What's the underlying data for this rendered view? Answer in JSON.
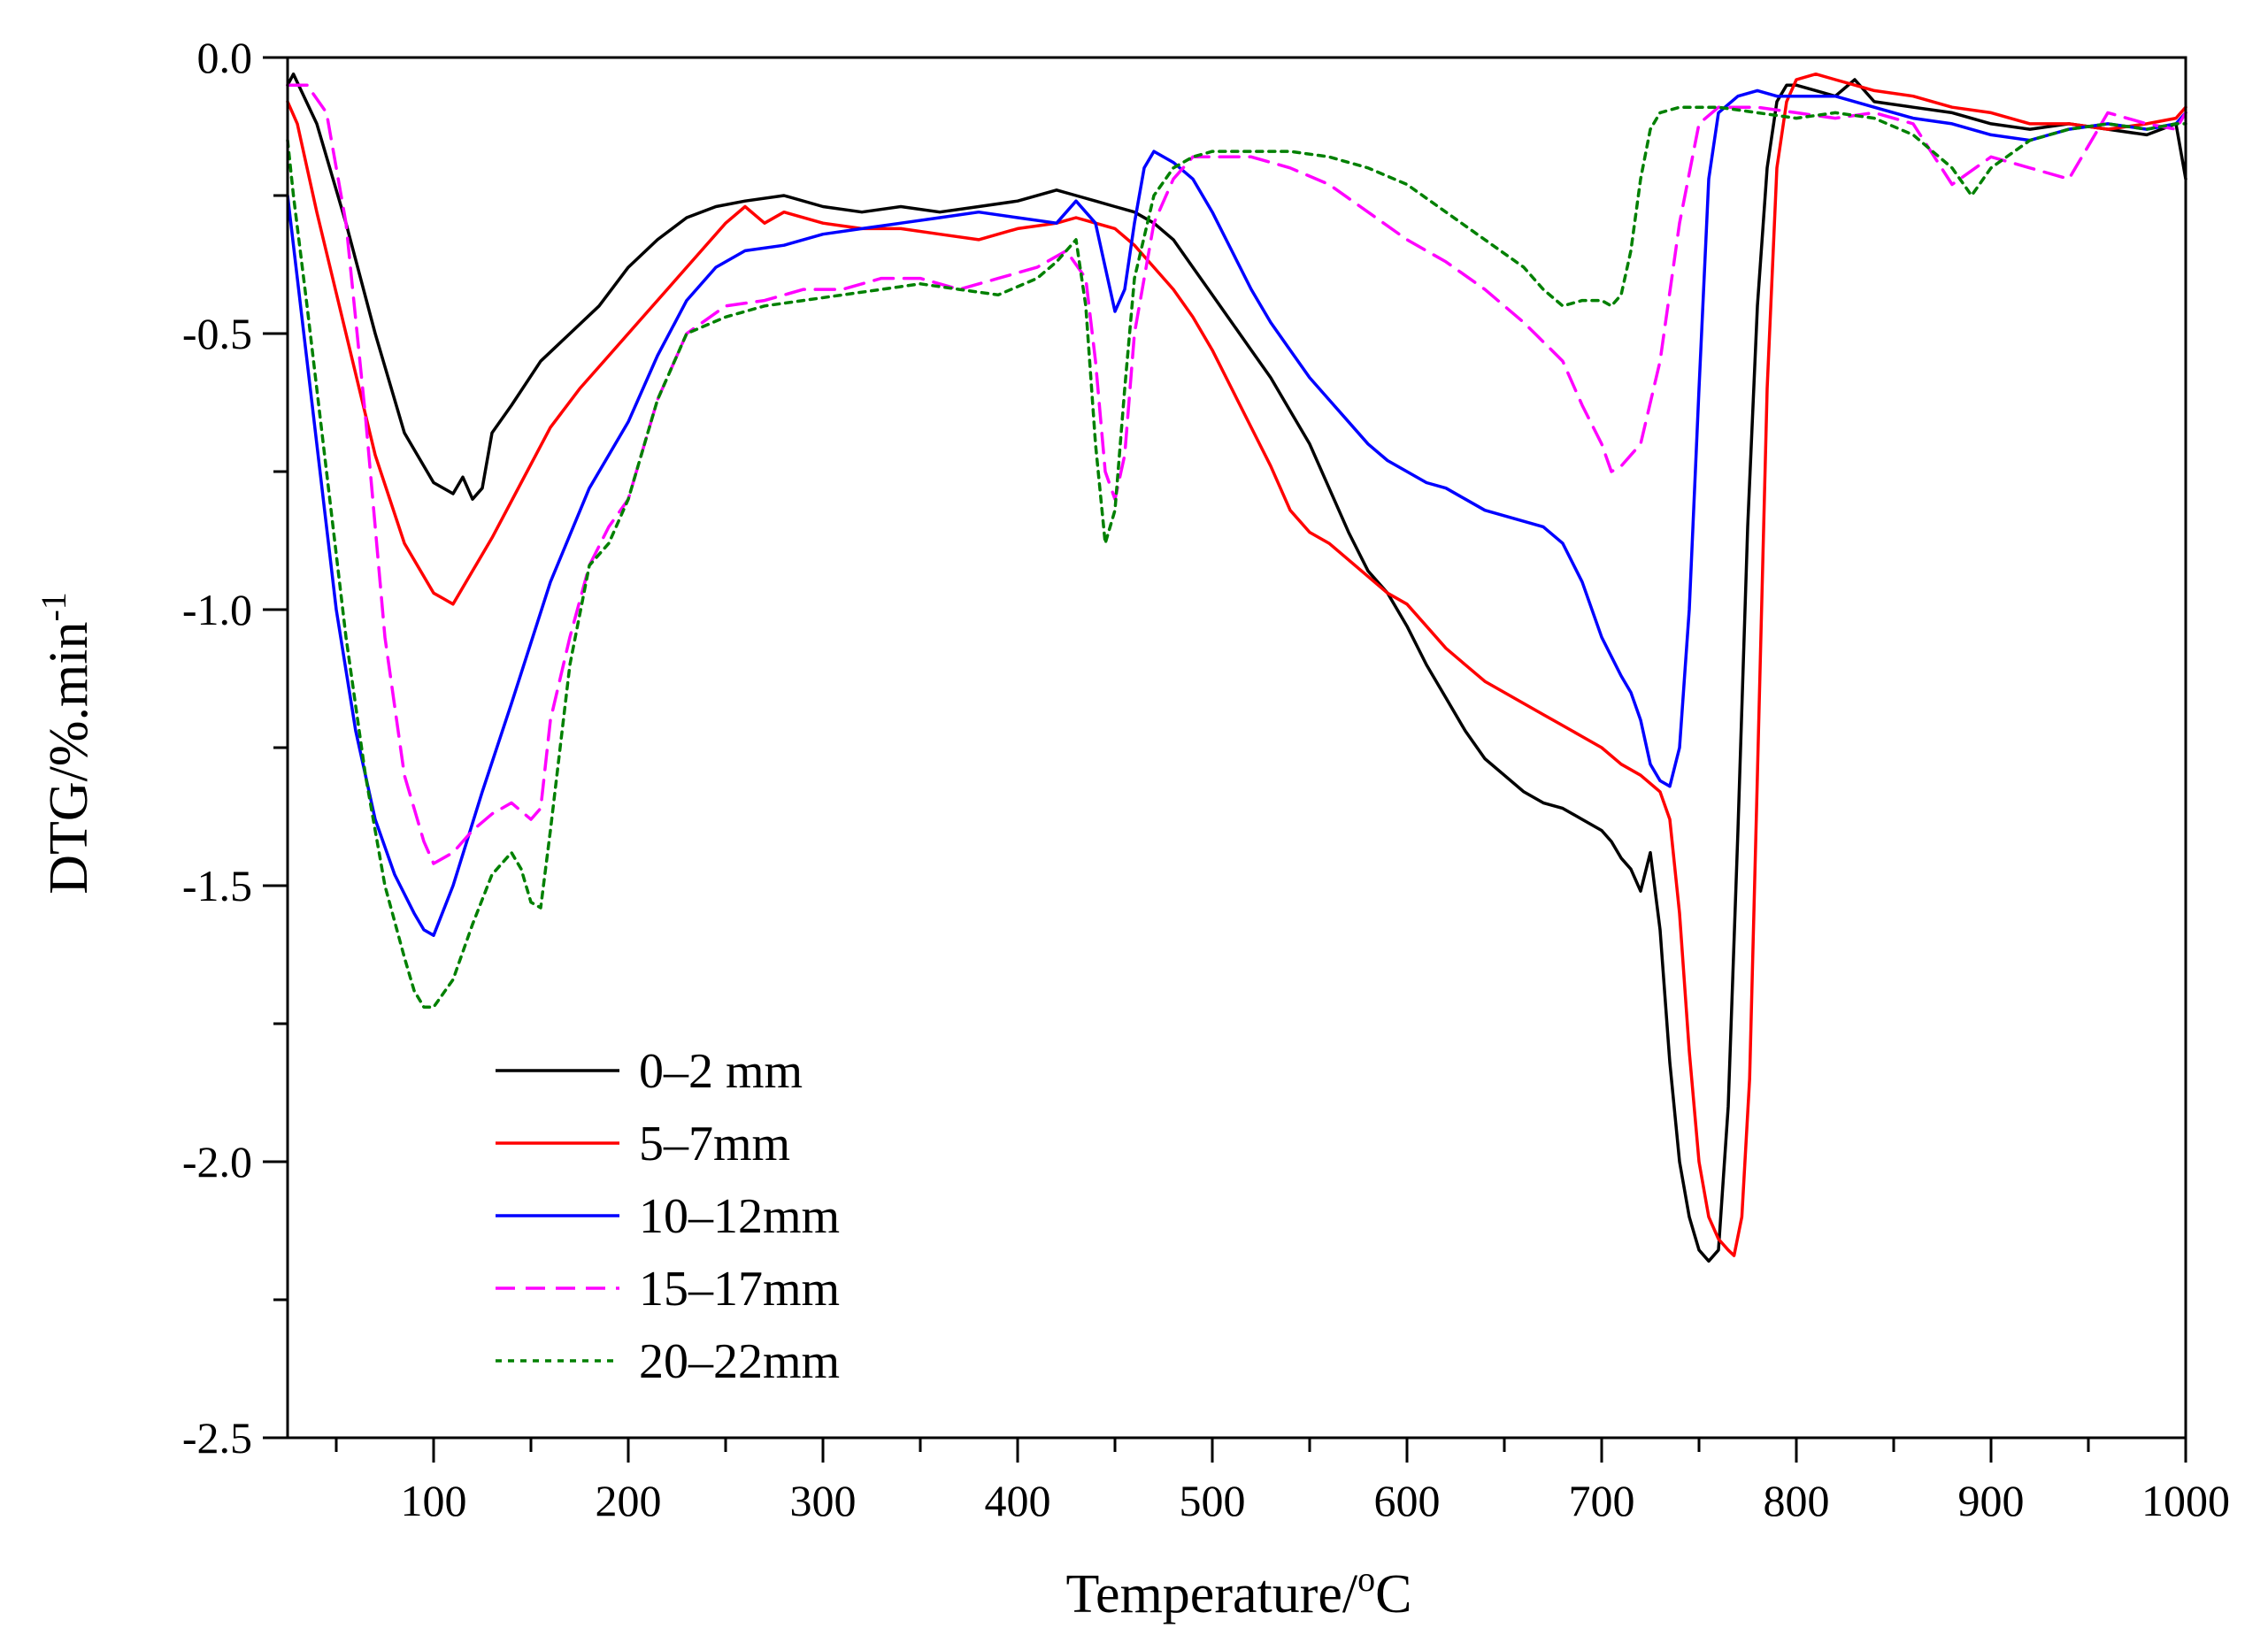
{
  "chart_data": {
    "type": "line",
    "title": "",
    "xlabel": "Temperature/",
    "xlabel_sup": "o",
    "xlabel_unit": "C",
    "ylabel": "DTG/%.min",
    "ylabel_sup": "-1",
    "xlim": [
      25,
      1000
    ],
    "ylim": [
      -2.5,
      0.0
    ],
    "x_ticks": [
      100,
      200,
      300,
      400,
      500,
      600,
      700,
      800,
      900,
      1000
    ],
    "x_tick_labels": [
      "100",
      "200",
      "300",
      "400",
      "500",
      "600",
      "700",
      "800",
      "900",
      "1000"
    ],
    "y_ticks": [
      0.0,
      -0.5,
      -1.0,
      -1.5,
      -2.0,
      -2.5
    ],
    "y_tick_labels": [
      "0.0",
      "-0.5",
      "-1.0",
      "-1.5",
      "-2.0",
      "-2.5"
    ],
    "grid": false,
    "legend_position": "bottom-left",
    "series": [
      {
        "name": "0–2 mm",
        "color": "#000000",
        "dash": "solid",
        "x": [
          25,
          28,
          40,
          55,
          70,
          85,
          100,
          110,
          115,
          120,
          125,
          130,
          140,
          155,
          170,
          185,
          200,
          215,
          230,
          245,
          260,
          280,
          300,
          320,
          340,
          360,
          380,
          400,
          420,
          430,
          440,
          450,
          460,
          470,
          480,
          490,
          500,
          510,
          520,
          530,
          540,
          550,
          560,
          570,
          580,
          590,
          600,
          610,
          620,
          630,
          640,
          650,
          660,
          670,
          680,
          690,
          700,
          705,
          710,
          715,
          720,
          725,
          730,
          735,
          740,
          745,
          750,
          755,
          760,
          765,
          770,
          775,
          780,
          785,
          790,
          795,
          800,
          810,
          820,
          830,
          840,
          860,
          880,
          900,
          920,
          940,
          960,
          980,
          995,
          1000
        ],
        "y": [
          -0.05,
          -0.03,
          -0.12,
          -0.3,
          -0.5,
          -0.68,
          -0.77,
          -0.79,
          -0.76,
          -0.8,
          -0.78,
          -0.68,
          -0.63,
          -0.55,
          -0.5,
          -0.45,
          -0.38,
          -0.33,
          -0.29,
          -0.27,
          -0.26,
          -0.25,
          -0.27,
          -0.28,
          -0.27,
          -0.28,
          -0.27,
          -0.26,
          -0.24,
          -0.25,
          -0.26,
          -0.27,
          -0.28,
          -0.3,
          -0.33,
          -0.38,
          -0.43,
          -0.48,
          -0.53,
          -0.58,
          -0.64,
          -0.7,
          -0.78,
          -0.86,
          -0.93,
          -0.97,
          -1.03,
          -1.1,
          -1.16,
          -1.22,
          -1.27,
          -1.3,
          -1.33,
          -1.35,
          -1.36,
          -1.38,
          -1.4,
          -1.42,
          -1.45,
          -1.47,
          -1.51,
          -1.44,
          -1.58,
          -1.82,
          -2.0,
          -2.1,
          -2.16,
          -2.18,
          -2.16,
          -1.9,
          -1.4,
          -0.85,
          -0.45,
          -0.2,
          -0.08,
          -0.05,
          -0.05,
          -0.06,
          -0.07,
          -0.04,
          -0.08,
          -0.09,
          -0.1,
          -0.12,
          -0.13,
          -0.12,
          -0.13,
          -0.14,
          -0.12,
          -0.22
        ]
      },
      {
        "name": "5–7mm",
        "color": "#ff0000",
        "dash": "solid",
        "x": [
          25,
          30,
          40,
          55,
          70,
          85,
          100,
          105,
          110,
          115,
          120,
          130,
          145,
          160,
          175,
          190,
          205,
          220,
          235,
          250,
          260,
          270,
          280,
          300,
          320,
          340,
          360,
          380,
          400,
          420,
          430,
          440,
          450,
          460,
          470,
          480,
          490,
          500,
          510,
          520,
          530,
          540,
          550,
          560,
          570,
          580,
          590,
          600,
          610,
          620,
          630,
          640,
          650,
          660,
          670,
          680,
          690,
          700,
          710,
          720,
          730,
          735,
          740,
          745,
          750,
          755,
          760,
          765,
          768,
          772,
          776,
          780,
          785,
          790,
          795,
          800,
          810,
          820,
          830,
          840,
          860,
          880,
          900,
          920,
          940,
          960,
          980,
          995,
          1000
        ],
        "y": [
          -0.08,
          -0.12,
          -0.28,
          -0.5,
          -0.72,
          -0.88,
          -0.97,
          -0.98,
          -0.99,
          -0.96,
          -0.93,
          -0.87,
          -0.77,
          -0.67,
          -0.6,
          -0.54,
          -0.48,
          -0.42,
          -0.36,
          -0.3,
          -0.27,
          -0.3,
          -0.28,
          -0.3,
          -0.31,
          -0.31,
          -0.32,
          -0.33,
          -0.31,
          -0.3,
          -0.29,
          -0.3,
          -0.31,
          -0.34,
          -0.38,
          -0.42,
          -0.47,
          -0.53,
          -0.6,
          -0.67,
          -0.74,
          -0.82,
          -0.86,
          -0.88,
          -0.91,
          -0.94,
          -0.97,
          -0.99,
          -1.03,
          -1.07,
          -1.1,
          -1.13,
          -1.15,
          -1.17,
          -1.19,
          -1.21,
          -1.23,
          -1.25,
          -1.28,
          -1.3,
          -1.33,
          -1.38,
          -1.55,
          -1.8,
          -2.0,
          -2.1,
          -2.14,
          -2.16,
          -2.17,
          -2.1,
          -1.85,
          -1.3,
          -0.6,
          -0.2,
          -0.08,
          -0.04,
          -0.03,
          -0.04,
          -0.05,
          -0.06,
          -0.07,
          -0.09,
          -0.1,
          -0.12,
          -0.12,
          -0.13,
          -0.12,
          -0.11,
          -0.09
        ]
      },
      {
        "name": "10–12mm",
        "color": "#0000ff",
        "dash": "solid",
        "x": [
          25,
          30,
          40,
          50,
          60,
          70,
          80,
          90,
          95,
          100,
          110,
          125,
          140,
          160,
          180,
          200,
          215,
          230,
          245,
          260,
          280,
          300,
          320,
          340,
          360,
          380,
          400,
          420,
          430,
          440,
          445,
          450,
          455,
          460,
          465,
          470,
          480,
          490,
          500,
          510,
          520,
          530,
          540,
          550,
          560,
          570,
          580,
          590,
          600,
          610,
          620,
          630,
          640,
          650,
          660,
          670,
          680,
          690,
          700,
          710,
          715,
          720,
          725,
          730,
          735,
          740,
          745,
          750,
          755,
          760,
          770,
          780,
          790,
          800,
          820,
          840,
          860,
          880,
          900,
          920,
          940,
          960,
          980,
          995,
          1000
        ],
        "y": [
          -0.25,
          -0.4,
          -0.7,
          -1.0,
          -1.22,
          -1.38,
          -1.48,
          -1.55,
          -1.58,
          -1.59,
          -1.5,
          -1.33,
          -1.17,
          -0.95,
          -0.78,
          -0.66,
          -0.54,
          -0.44,
          -0.38,
          -0.35,
          -0.34,
          -0.32,
          -0.31,
          -0.3,
          -0.29,
          -0.28,
          -0.29,
          -0.3,
          -0.26,
          -0.3,
          -0.38,
          -0.46,
          -0.42,
          -0.3,
          -0.2,
          -0.17,
          -0.19,
          -0.22,
          -0.28,
          -0.35,
          -0.42,
          -0.48,
          -0.53,
          -0.58,
          -0.62,
          -0.66,
          -0.7,
          -0.73,
          -0.75,
          -0.77,
          -0.78,
          -0.8,
          -0.82,
          -0.83,
          -0.84,
          -0.85,
          -0.88,
          -0.95,
          -1.05,
          -1.12,
          -1.15,
          -1.2,
          -1.28,
          -1.31,
          -1.32,
          -1.25,
          -1.0,
          -0.6,
          -0.22,
          -0.1,
          -0.07,
          -0.06,
          -0.07,
          -0.07,
          -0.07,
          -0.09,
          -0.11,
          -0.12,
          -0.14,
          -0.15,
          -0.13,
          -0.12,
          -0.13,
          -0.12,
          -0.1
        ]
      },
      {
        "name": "15–17mm",
        "color": "#ff00ff",
        "dash": "dashed",
        "x": [
          25,
          30,
          35,
          45,
          55,
          65,
          75,
          85,
          95,
          100,
          110,
          120,
          130,
          140,
          150,
          155,
          160,
          170,
          180,
          190,
          200,
          215,
          230,
          250,
          270,
          290,
          310,
          330,
          350,
          370,
          390,
          410,
          425,
          435,
          440,
          445,
          450,
          455,
          460,
          470,
          480,
          490,
          500,
          520,
          540,
          560,
          580,
          600,
          620,
          640,
          660,
          680,
          690,
          700,
          705,
          710,
          720,
          730,
          740,
          750,
          760,
          780,
          800,
          820,
          840,
          860,
          880,
          900,
          920,
          940,
          960,
          980,
          995,
          1000
        ],
        "y": [
          -0.05,
          -0.05,
          -0.05,
          -0.1,
          -0.3,
          -0.65,
          -1.05,
          -1.3,
          -1.42,
          -1.46,
          -1.44,
          -1.4,
          -1.37,
          -1.35,
          -1.38,
          -1.36,
          -1.2,
          -1.05,
          -0.92,
          -0.85,
          -0.8,
          -0.62,
          -0.5,
          -0.45,
          -0.44,
          -0.42,
          -0.42,
          -0.4,
          -0.4,
          -0.42,
          -0.4,
          -0.38,
          -0.35,
          -0.4,
          -0.55,
          -0.75,
          -0.8,
          -0.72,
          -0.5,
          -0.3,
          -0.22,
          -0.18,
          -0.18,
          -0.18,
          -0.2,
          -0.23,
          -0.28,
          -0.33,
          -0.37,
          -0.42,
          -0.48,
          -0.55,
          -0.63,
          -0.7,
          -0.75,
          -0.74,
          -0.7,
          -0.55,
          -0.3,
          -0.12,
          -0.09,
          -0.09,
          -0.1,
          -0.11,
          -0.1,
          -0.12,
          -0.23,
          -0.18,
          -0.2,
          -0.22,
          -0.1,
          -0.12,
          -0.13,
          -0.1
        ]
      },
      {
        "name": "20–22mm",
        "color": "#008000",
        "dash": "dotted",
        "x": [
          25,
          28,
          35,
          45,
          55,
          65,
          75,
          85,
          90,
          95,
          100,
          110,
          120,
          130,
          140,
          145,
          150,
          155,
          160,
          170,
          180,
          190,
          200,
          215,
          230,
          250,
          270,
          290,
          310,
          330,
          350,
          370,
          390,
          410,
          420,
          430,
          435,
          440,
          445,
          450,
          455,
          460,
          470,
          480,
          490,
          500,
          520,
          540,
          560,
          580,
          600,
          620,
          640,
          660,
          670,
          680,
          690,
          700,
          705,
          710,
          715,
          720,
          725,
          730,
          740,
          760,
          780,
          800,
          820,
          840,
          860,
          880,
          890,
          900,
          920,
          940,
          960,
          980,
          995,
          1000
        ],
        "y": [
          -0.15,
          -0.25,
          -0.45,
          -0.75,
          -1.05,
          -1.3,
          -1.5,
          -1.63,
          -1.69,
          -1.72,
          -1.72,
          -1.67,
          -1.57,
          -1.48,
          -1.44,
          -1.47,
          -1.53,
          -1.54,
          -1.4,
          -1.1,
          -0.92,
          -0.88,
          -0.8,
          -0.62,
          -0.5,
          -0.47,
          -0.45,
          -0.44,
          -0.43,
          -0.42,
          -0.41,
          -0.42,
          -0.43,
          -0.4,
          -0.37,
          -0.33,
          -0.45,
          -0.7,
          -0.88,
          -0.82,
          -0.6,
          -0.4,
          -0.25,
          -0.2,
          -0.18,
          -0.17,
          -0.17,
          -0.17,
          -0.18,
          -0.2,
          -0.23,
          -0.28,
          -0.33,
          -0.38,
          -0.42,
          -0.45,
          -0.44,
          -0.44,
          -0.45,
          -0.43,
          -0.35,
          -0.22,
          -0.13,
          -0.1,
          -0.09,
          -0.09,
          -0.1,
          -0.11,
          -0.1,
          -0.11,
          -0.14,
          -0.2,
          -0.25,
          -0.2,
          -0.15,
          -0.13,
          -0.12,
          -0.13,
          -0.12,
          -0.12
        ]
      }
    ]
  }
}
